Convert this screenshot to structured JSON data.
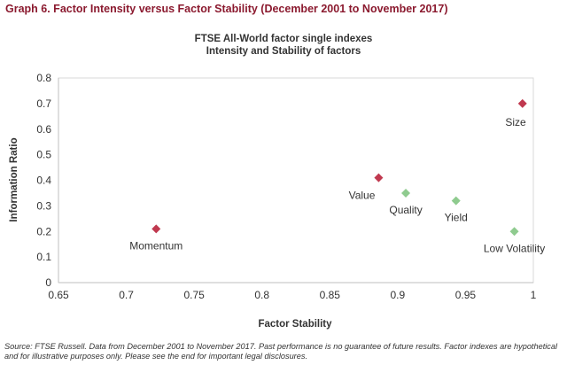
{
  "heading": "Graph 6. Factor Intensity versus Factor Stability (December 2001 to November 2017)",
  "footnote": "Source: FTSE Russell. Data from December 2001 to November 2017. Past performance is no guarantee of future results. Factor indexes are hypothetical and for illustrative purposes only. Please see the end for important legal disclosures.",
  "colors": {
    "heading": "#8b1a2f",
    "red_marker": "#c0394f",
    "green_marker": "#8fcb8f"
  },
  "chart_data": {
    "type": "scatter",
    "title": "FTSE All-World factor single indexes",
    "subtitle": "Intensity and Stability of factors",
    "xlabel": "Factor Stability",
    "ylabel": "Information Ratio",
    "xlim": [
      0.65,
      1
    ],
    "ylim": [
      0,
      0.8
    ],
    "xticks": [
      "0.65",
      "0.7",
      "0.75",
      "0.8",
      "0.85",
      "0.9",
      "0.95",
      "1"
    ],
    "yticks": [
      "0",
      "0.1",
      "0.2",
      "0.3",
      "0.4",
      "0.5",
      "0.6",
      "0.7",
      "0.8"
    ],
    "grid": false,
    "points": [
      {
        "label": "Momentum",
        "x": 0.722,
        "y": 0.21,
        "color": "#c0394f",
        "label_pos": "below"
      },
      {
        "label": "Value",
        "x": 0.886,
        "y": 0.41,
        "color": "#c0394f",
        "label_pos": "below-left"
      },
      {
        "label": "Size",
        "x": 0.992,
        "y": 0.7,
        "color": "#c0394f",
        "label_pos": "below-left"
      },
      {
        "label": "Quality",
        "x": 0.906,
        "y": 0.35,
        "color": "#8fcb8f",
        "label_pos": "below"
      },
      {
        "label": "Yield",
        "x": 0.943,
        "y": 0.32,
        "color": "#8fcb8f",
        "label_pos": "below"
      },
      {
        "label": "Low Volatility",
        "x": 0.986,
        "y": 0.2,
        "color": "#8fcb8f",
        "label_pos": "below"
      }
    ]
  }
}
